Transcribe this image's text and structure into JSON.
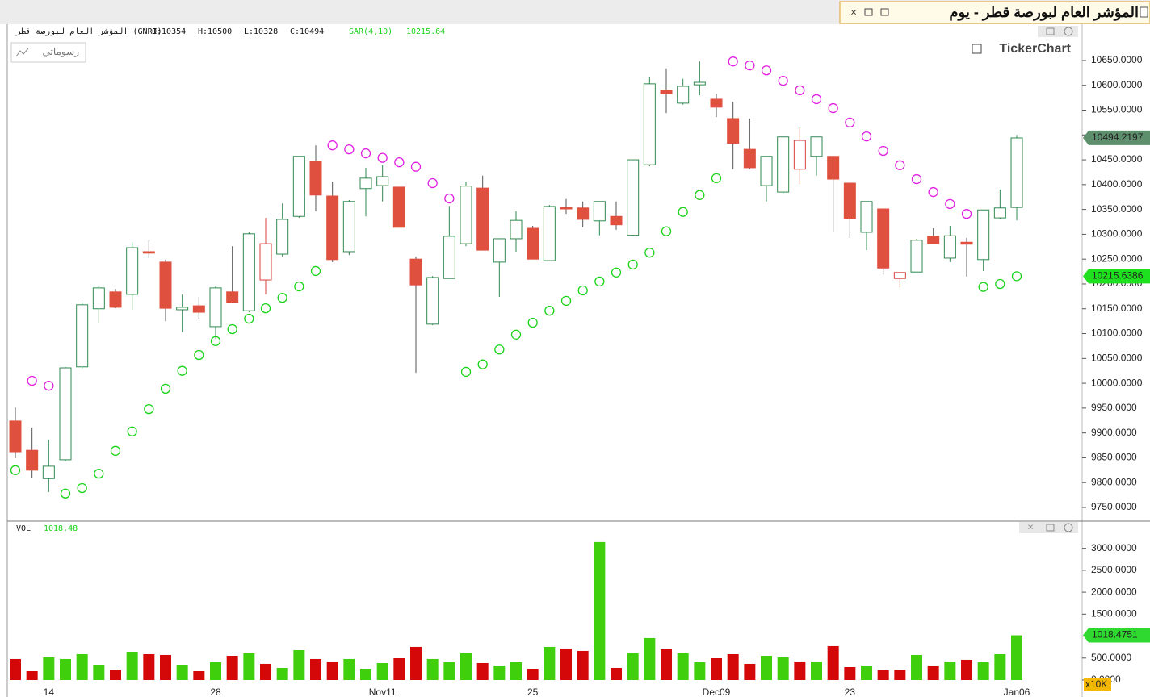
{
  "window_title": "المؤشر العام لبورصة قطر - يوم",
  "brand": "TickerChart",
  "drawings_button": "رسوماتي",
  "chart_data": [
    {
      "type": "candlestick",
      "instrument": "المؤشر العام لبورصة قطر (GNRI)",
      "ohlc_labels": [
        "O:10354",
        "H:10500",
        "L:10328",
        "C:10494"
      ],
      "indicator_name": "SAR(4,10)",
      "indicator_value": "10215.64",
      "categories": [
        null,
        null,
        "14",
        null,
        null,
        null,
        null,
        null,
        null,
        null,
        null,
        null,
        "28",
        null,
        null,
        null,
        null,
        null,
        null,
        null,
        null,
        null,
        "Nov11",
        null,
        null,
        null,
        null,
        null,
        null,
        null,
        null,
        "25",
        null,
        null,
        null,
        null,
        null,
        null,
        null,
        null,
        null,
        null,
        "Dec09",
        null,
        null,
        null,
        null,
        null,
        null,
        null,
        "23",
        null,
        null,
        null,
        null,
        null,
        null,
        null,
        null,
        null,
        "Jan06"
      ],
      "open": [
        9924,
        9865,
        9808,
        9846,
        10033,
        10150,
        10184,
        10179,
        10265,
        10244,
        10148,
        10156,
        10114,
        10184,
        10146,
        10208,
        10260,
        10336,
        10447,
        10377,
        10265,
        10392,
        10398,
        10395,
        10250,
        10119,
        10211,
        10281,
        10393,
        10244,
        10291,
        10312,
        10247,
        10354,
        10353,
        10327,
        10336,
        10298,
        10440,
        10590,
        10564,
        10601,
        10572,
        10533,
        10471,
        10398,
        10385,
        10431,
        10457,
        10457,
        10403,
        10304,
        10351,
        10211,
        10224,
        10296,
        10252,
        10284,
        10249,
        10333,
        10354
      ],
      "high": [
        9951,
        9911,
        9886,
        10033,
        10163,
        10195,
        10190,
        10284,
        10288,
        10249,
        10179,
        10174,
        10195,
        10276,
        10304,
        10333,
        10362,
        10457,
        10479,
        10406,
        10369,
        10434,
        10439,
        10395,
        10255,
        10216,
        10357,
        10406,
        10418,
        10291,
        10346,
        10317,
        10359,
        10371,
        10366,
        10366,
        10366,
        10450,
        10616,
        10634,
        10613,
        10648,
        10583,
        10567,
        10533,
        10457,
        10496,
        10515,
        10496,
        10457,
        10403,
        10366,
        10351,
        10223,
        10291,
        10312,
        10317,
        10293,
        10349,
        10390,
        10500
      ],
      "low": [
        9849,
        9810,
        9781,
        9843,
        10028,
        10122,
        10151,
        10148,
        10252,
        10125,
        10103,
        10130,
        10090,
        10161,
        10143,
        10179,
        10255,
        10333,
        10346,
        10244,
        10258,
        10336,
        10366,
        10314,
        10021,
        10117,
        10211,
        10276,
        10268,
        10174,
        10265,
        10250,
        10247,
        10341,
        10314,
        10298,
        10309,
        10298,
        10437,
        10544,
        10561,
        10580,
        10536,
        10431,
        10431,
        10366,
        10382,
        10401,
        10418,
        10304,
        10293,
        10268,
        10219,
        10193,
        10224,
        10281,
        10244,
        10215,
        10226,
        10330,
        10328
      ],
      "close": [
        9862,
        9825,
        9833,
        10031,
        10158,
        10192,
        10153,
        10273,
        10262,
        10151,
        10153,
        10143,
        10192,
        10163,
        10301,
        10281,
        10330,
        10457,
        10379,
        10249,
        10366,
        10413,
        10416,
        10314,
        10198,
        10213,
        10296,
        10397,
        10268,
        10291,
        10328,
        10250,
        10356,
        10351,
        10330,
        10366,
        10319,
        10450,
        10603,
        10583,
        10598,
        10606,
        10556,
        10483,
        10434,
        10457,
        10496,
        10489,
        10496,
        10411,
        10332,
        10366,
        10232,
        10223,
        10288,
        10281,
        10297,
        10280,
        10349,
        10353,
        10494
      ],
      "sar": [
        9825,
        10005,
        9995,
        9778,
        9789,
        9818,
        9864,
        9903,
        9948,
        9989,
        10025,
        10057,
        10085,
        10109,
        10130,
        10151,
        10172,
        10195,
        10226,
        10479,
        10471,
        10463,
        10454,
        10445,
        10436,
        10403,
        10372,
        10023,
        10038,
        10068,
        10098,
        10122,
        10146,
        10166,
        10187,
        10205,
        10223,
        10239,
        10263,
        10306,
        10345,
        10379,
        10413,
        10648,
        10640,
        10630,
        10609,
        10590,
        10572,
        10554,
        10525,
        10497,
        10468,
        10439,
        10411,
        10385,
        10361,
        10341,
        10194,
        10200,
        10215.64
      ],
      "up_color": "#2f8a4e",
      "down_color": "#e0503f",
      "weak_up_color": "#d9403a",
      "sar_above_color": "#e020e0",
      "sar_below_color": "#19d419",
      "last_close_label": 10494.2197,
      "last_close_color": "#5e8f6c",
      "sar_label": 10215.6386,
      "sar_label_color": "#1fe01f",
      "ylim": [
        9724,
        10723
      ],
      "yticks": [
        {
          "value": 9750,
          "label": "9750.0000"
        },
        {
          "value": 9800,
          "label": "9800.0000"
        },
        {
          "value": 9850,
          "label": "9850.0000"
        },
        {
          "value": 9900,
          "label": "9900.0000"
        },
        {
          "value": 9950,
          "label": "9950.0000"
        },
        {
          "value": 10000,
          "label": "10000.0000"
        },
        {
          "value": 10050,
          "label": "10050.0000"
        },
        {
          "value": 10100,
          "label": "10100.0000"
        },
        {
          "value": 10150,
          "label": "10150.0000"
        },
        {
          "value": 10200,
          "label": "10200.0000"
        },
        {
          "value": 10250,
          "label": "10250.0000"
        },
        {
          "value": 10300,
          "label": "10300.0000"
        },
        {
          "value": 10350,
          "label": "10350.0000"
        },
        {
          "value": 10400,
          "label": "10400.0000"
        },
        {
          "value": 10450,
          "label": "10450.0000"
        },
        {
          "value": 10500,
          "label": "10500.0000"
        },
        {
          "value": 10550,
          "label": "10550.0000"
        },
        {
          "value": 10600,
          "label": "10600.0000"
        },
        {
          "value": 10650,
          "label": "10650.0000"
        }
      ]
    },
    {
      "type": "bar",
      "name": "VOL",
      "current_value": "1018.48",
      "values": [
        478,
        202,
        515,
        478,
        588,
        349,
        239,
        643,
        588,
        570,
        349,
        202,
        404,
        551,
        606,
        368,
        276,
        680,
        478,
        423,
        478,
        257,
        386,
        496,
        754,
        478,
        404,
        606,
        386,
        331,
        404,
        257,
        754,
        717,
        662,
        3143,
        276,
        606,
        956,
        698,
        606,
        404,
        496,
        588,
        368,
        551,
        515,
        423,
        423,
        772,
        294,
        331,
        221,
        239,
        570,
        331,
        423,
        460,
        404,
        588,
        1018.48
      ],
      "up_color": "#3fcf0c",
      "down_color": "#d40808",
      "last_label": 1018.4751,
      "last_label_color": "#2fd92f",
      "multiplier": "x10K",
      "ylim": [
        0,
        3600
      ],
      "yticks": [
        {
          "value": 0,
          "label": "0.0000"
        },
        {
          "value": 500,
          "label": "500.0000"
        },
        {
          "value": 1000,
          "label": "1000.0000"
        },
        {
          "value": 1500,
          "label": "1500.0000"
        },
        {
          "value": 2000,
          "label": "2000.0000"
        },
        {
          "value": 2500,
          "label": "2500.0000"
        },
        {
          "value": 3000,
          "label": "3000.0000"
        }
      ]
    }
  ]
}
